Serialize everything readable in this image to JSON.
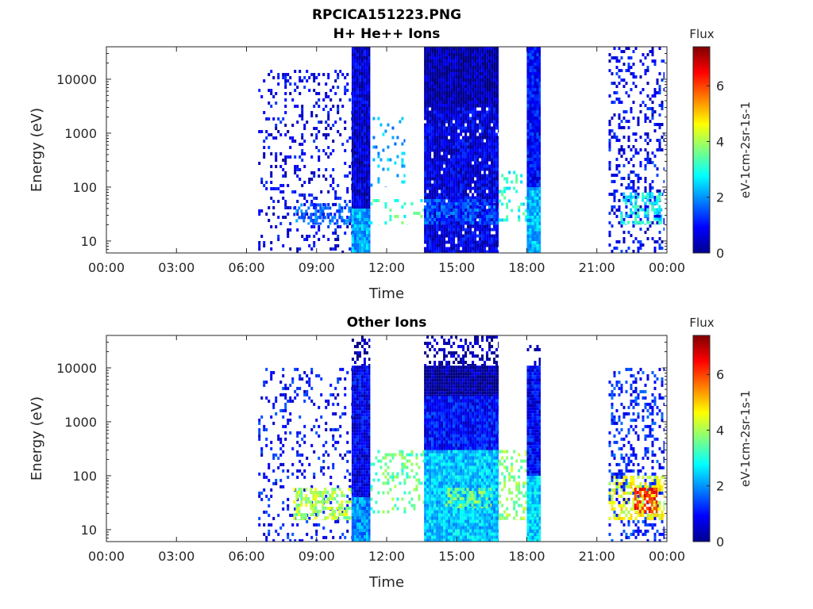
{
  "figure": {
    "filename": "RPCICA151223.PNG"
  },
  "chart_data": [
    {
      "type": "heatmap",
      "title": "H+ He++ Ions",
      "xlabel": "Time",
      "ylabel": "Energy (eV)",
      "x_tick_labels": [
        "00:00",
        "03:00",
        "06:00",
        "09:00",
        "12:00",
        "15:00",
        "18:00",
        "21:00",
        "00:00"
      ],
      "x_range_hours": [
        0,
        24
      ],
      "y_scale": "log",
      "y_range_eV": [
        6,
        40000
      ],
      "y_tick_labels": [
        "10",
        "100",
        "1000",
        "10000"
      ],
      "y_tick_values": [
        10,
        100,
        1000,
        10000
      ],
      "colorbar": {
        "title": "Flux",
        "label": "eV-1cm-2sr-1s-1",
        "range": [
          0,
          7.4
        ],
        "ticks": [
          "0",
          "2",
          "4",
          "6"
        ],
        "tick_values": [
          0,
          2,
          4,
          6
        ],
        "colormap": "jet"
      },
      "regions": [
        {
          "t": [
            6.5,
            10.5
          ],
          "e": [
            6,
            15000
          ],
          "flux": 0.8,
          "density": 0.18
        },
        {
          "t": [
            8.0,
            10.5
          ],
          "e": [
            20,
            50
          ],
          "flux": 1.6,
          "density": 0.5
        },
        {
          "t": [
            10.5,
            11.3
          ],
          "e": [
            6,
            40000
          ],
          "flux": 0.6,
          "density": 1.0
        },
        {
          "t": [
            10.5,
            11.3
          ],
          "e": [
            6,
            40
          ],
          "flux": 2.2,
          "density": 1.0
        },
        {
          "t": [
            11.3,
            12.8
          ],
          "e": [
            100,
            2000
          ],
          "flux": 2.2,
          "density": 0.1
        },
        {
          "t": [
            11.3,
            13.6
          ],
          "e": [
            20,
            60
          ],
          "flux": 3.2,
          "density": 0.12
        },
        {
          "t": [
            13.6,
            16.8
          ],
          "e": [
            3000,
            40000
          ],
          "flux": 0.3,
          "density": 1.0
        },
        {
          "t": [
            13.6,
            16.8
          ],
          "e": [
            6,
            3000
          ],
          "flux": 0.7,
          "density": 0.95
        },
        {
          "t": [
            13.6,
            16.8
          ],
          "e": [
            20,
            60
          ],
          "flux": 1.5,
          "density": 0.7
        },
        {
          "t": [
            16.8,
            18.0
          ],
          "e": [
            20,
            200
          ],
          "flux": 3.0,
          "density": 0.2
        },
        {
          "t": [
            18.0,
            18.6
          ],
          "e": [
            6,
            40000
          ],
          "flux": 1.0,
          "density": 1.0
        },
        {
          "t": [
            18.0,
            18.6
          ],
          "e": [
            6,
            100
          ],
          "flux": 2.3,
          "density": 1.0
        },
        {
          "t": [
            21.5,
            23.9
          ],
          "e": [
            6,
            40000
          ],
          "flux": 0.9,
          "density": 0.25
        },
        {
          "t": [
            22.0,
            23.8
          ],
          "e": [
            20,
            80
          ],
          "flux": 2.8,
          "density": 0.5
        }
      ]
    },
    {
      "type": "heatmap",
      "title": "Other Ions",
      "xlabel": "Time",
      "ylabel": "Energy (eV)",
      "x_tick_labels": [
        "00:00",
        "03:00",
        "06:00",
        "09:00",
        "12:00",
        "15:00",
        "18:00",
        "21:00",
        "00:00"
      ],
      "x_range_hours": [
        0,
        24
      ],
      "y_scale": "log",
      "y_range_eV": [
        6,
        40000
      ],
      "y_tick_labels": [
        "10",
        "100",
        "1000",
        "10000"
      ],
      "y_tick_values": [
        10,
        100,
        1000,
        10000
      ],
      "colorbar": {
        "title": "Flux",
        "label": "eV-1cm-2sr-1s-1",
        "range": [
          0,
          7.4
        ],
        "ticks": [
          "0",
          "2",
          "4",
          "6"
        ],
        "tick_values": [
          0,
          2,
          4,
          6
        ],
        "colormap": "jet"
      },
      "regions": [
        {
          "t": [
            6.5,
            10.5
          ],
          "e": [
            6,
            10000
          ],
          "flux": 1.0,
          "density": 0.15
        },
        {
          "t": [
            8.0,
            10.5
          ],
          "e": [
            15,
            60
          ],
          "flux": 4.0,
          "density": 0.5
        },
        {
          "t": [
            10.5,
            11.3
          ],
          "e": [
            11000,
            40000
          ],
          "flux": 0.3,
          "density": 0.3
        },
        {
          "t": [
            10.5,
            11.3
          ],
          "e": [
            6,
            11000
          ],
          "flux": 0.8,
          "density": 1.0
        },
        {
          "t": [
            10.5,
            11.3
          ],
          "e": [
            6,
            40
          ],
          "flux": 2.0,
          "density": 1.0
        },
        {
          "t": [
            11.3,
            13.6
          ],
          "e": [
            20,
            300
          ],
          "flux": 3.5,
          "density": 0.25
        },
        {
          "t": [
            13.6,
            16.8
          ],
          "e": [
            11000,
            40000
          ],
          "flux": 0.3,
          "density": 0.45
        },
        {
          "t": [
            13.6,
            16.8
          ],
          "e": [
            3000,
            11000
          ],
          "flux": 0.2,
          "density": 1.0
        },
        {
          "t": [
            13.6,
            16.8
          ],
          "e": [
            300,
            3000
          ],
          "flux": 1.0,
          "density": 1.0
        },
        {
          "t": [
            13.6,
            16.8
          ],
          "e": [
            6,
            300
          ],
          "flux": 2.4,
          "density": 1.0
        },
        {
          "t": [
            14.5,
            16.5
          ],
          "e": [
            25,
            60
          ],
          "flux": 3.6,
          "density": 0.5
        },
        {
          "t": [
            16.8,
            18.0
          ],
          "e": [
            15,
            300
          ],
          "flux": 3.8,
          "density": 0.35
        },
        {
          "t": [
            18.0,
            18.6
          ],
          "e": [
            11000,
            40000
          ],
          "flux": 0.3,
          "density": 0.3
        },
        {
          "t": [
            18.0,
            18.6
          ],
          "e": [
            6,
            11000
          ],
          "flux": 0.9,
          "density": 1.0
        },
        {
          "t": [
            18.0,
            18.6
          ],
          "e": [
            6,
            100
          ],
          "flux": 2.5,
          "density": 1.0
        },
        {
          "t": [
            21.5,
            23.9
          ],
          "e": [
            6,
            10000
          ],
          "flux": 1.2,
          "density": 0.28
        },
        {
          "t": [
            21.5,
            23.9
          ],
          "e": [
            15,
            100
          ],
          "flux": 4.5,
          "density": 0.5
        },
        {
          "t": [
            22.6,
            23.6
          ],
          "e": [
            20,
            60
          ],
          "flux": 6.2,
          "density": 0.6
        }
      ]
    }
  ]
}
